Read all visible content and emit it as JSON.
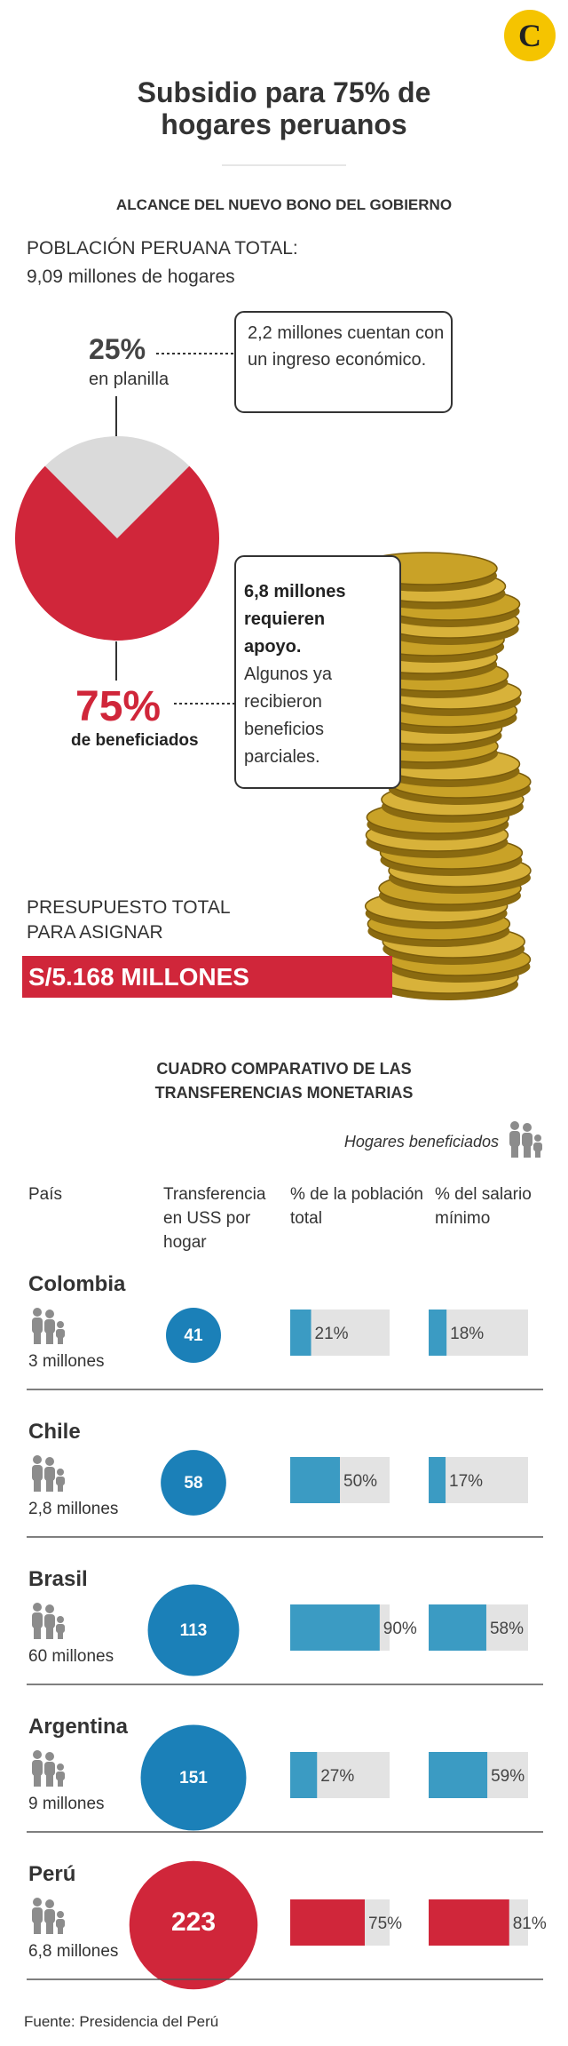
{
  "header": {
    "title": "Subsidio para 75% de hogares peruanos",
    "subtitle": "ALCANCE DEL NUEVO BONO DEL GOBIERNO"
  },
  "population": {
    "label": "POBLACIÓN PERUANA TOTAL:",
    "value": "9,09 millones de hogares"
  },
  "pie": {
    "type": "pie",
    "slices": [
      {
        "value": 25,
        "label": "25%",
        "caption": "en planilla",
        "note": "2,2 millones cuentan con un ingreso económico.",
        "color": "#dadada"
      },
      {
        "value": 75,
        "label": "75%",
        "caption": "de beneficiados",
        "note_bold": "6,8 millones requieren apoyo.",
        "note": "Algunos ya recibieron beneficios parciales.",
        "color": "#d0263a"
      }
    ]
  },
  "budget": {
    "label": "PRESUPUESTO TOTAL PARA ASIGNAR",
    "value": "S/5.168 MILLONES"
  },
  "comparison": {
    "title": "CUADRO COMPARATIVO DE LAS TRANSFERENCIAS MONETARIAS",
    "legend": "Hogares beneficiados",
    "columns": [
      "País",
      "Transferencia en USS por hogar",
      "% de la población total",
      "% del salario mínimo"
    ],
    "rows": [
      {
        "country": "Colombia",
        "households": "3 millones",
        "transfer": 41,
        "population": {
          "value": 21,
          "label": "21%"
        },
        "wage": {
          "value": 18,
          "label": "18%"
        },
        "color": "#1b80b8",
        "bar_color": "#3b9bc3"
      },
      {
        "country": "Chile",
        "households": "2,8 millones",
        "transfer": 58,
        "population": {
          "value": 50,
          "label": "50%"
        },
        "wage": {
          "value": 17,
          "label": "17%"
        },
        "color": "#1b80b8",
        "bar_color": "#3b9bc3"
      },
      {
        "country": "Brasil",
        "households": "60 millones",
        "transfer": 113,
        "population": {
          "value": 90,
          "label": "90%"
        },
        "wage": {
          "value": 58,
          "label": "58%"
        },
        "color": "#1b80b8",
        "bar_color": "#3b9bc3"
      },
      {
        "country": "Argentina",
        "households": "9 millones",
        "transfer": 151,
        "population": {
          "value": 27,
          "label": "27%"
        },
        "wage": {
          "value": 59,
          "label": "59%"
        },
        "color": "#1b80b8",
        "bar_color": "#3b9bc3"
      },
      {
        "country": "Perú",
        "households": "6,8 millones",
        "transfer": 223,
        "population": {
          "value": 75,
          "label": "75%"
        },
        "wage": {
          "value": 81,
          "label": "81%"
        },
        "color": "#d0263a",
        "bar_color": "#d0263a"
      }
    ]
  },
  "source": "Fuente: Presidencia del Perú"
}
